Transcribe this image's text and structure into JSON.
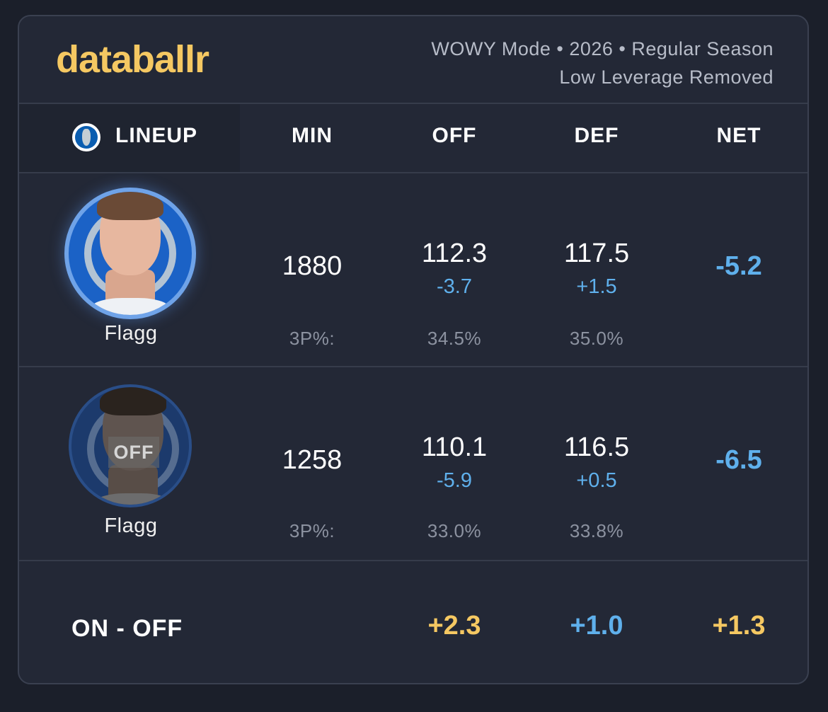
{
  "header": {
    "logo": "databallr",
    "meta_line1": "WOWY Mode • 2026 • Regular Season",
    "meta_line2": "Low Leverage Removed"
  },
  "columns": {
    "lineup": "LINEUP",
    "min": "MIN",
    "off": "OFF",
    "def": "DEF",
    "net": "NET"
  },
  "rows": [
    {
      "status": "on",
      "player": "Flagg",
      "min": "1880",
      "off": "112.3",
      "off_delta": "-3.7",
      "def": "117.5",
      "def_delta": "+1.5",
      "net": "-5.2",
      "tp_label": "3P%:",
      "tp_off": "34.5%",
      "tp_def": "35.0%"
    },
    {
      "status": "off",
      "off_badge": "OFF",
      "player": "Flagg",
      "min": "1258",
      "off": "110.1",
      "off_delta": "-5.9",
      "def": "116.5",
      "def_delta": "+0.5",
      "net": "-6.5",
      "tp_label": "3P%:",
      "tp_off": "33.0%",
      "tp_def": "33.8%"
    }
  ],
  "on_off": {
    "label": "ON - OFF",
    "off": "+2.3",
    "def": "+1.0",
    "net": "+1.3"
  },
  "colors": {
    "accent_gold": "#f5c862",
    "accent_blue": "#5fb0ec",
    "background": "#1b1f2a",
    "card": "#232836"
  }
}
